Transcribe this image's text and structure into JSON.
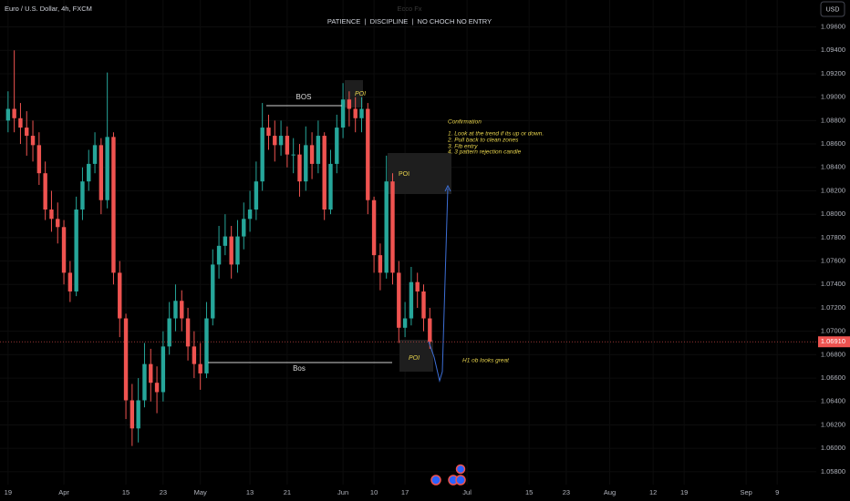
{
  "chart_data": {
    "type": "candlestick",
    "title": "Euro / U.S. Dollar, 4h, FXCM",
    "subtitle": "PATIENCE  |  DISCIPLINE  |  NO CHOCH NO ENTRY",
    "watermark": "Ecco Fx",
    "currency": "USD",
    "up_color": "#26a69a",
    "down_color": "#ef5350",
    "x": [
      0,
      1,
      2,
      3,
      4,
      5,
      6,
      7,
      8,
      9,
      10,
      11,
      12,
      13,
      14,
      15,
      16,
      17,
      18,
      19,
      20,
      21,
      22,
      23,
      24,
      25,
      26,
      27,
      28,
      29,
      30,
      31,
      32,
      33,
      34,
      35,
      36,
      37,
      38,
      39,
      40,
      41,
      42,
      43,
      44,
      45,
      46,
      47,
      48,
      49,
      50,
      51,
      52,
      53,
      54,
      55,
      56,
      57,
      58,
      59,
      60,
      61,
      62,
      63,
      64,
      65,
      66,
      67,
      68
    ],
    "open": [
      1.088,
      1.089,
      1.0882,
      1.0874,
      1.0867,
      1.0859,
      1.0835,
      1.0804,
      1.0796,
      1.0789,
      1.075,
      1.0734,
      1.0804,
      1.0828,
      1.0843,
      1.0859,
      1.0812,
      1.0866,
      1.075,
      1.0711,
      1.0641,
      1.0617,
      1.0641,
      1.0672,
      1.0656,
      1.0648,
      1.0687,
      1.0711,
      1.0726,
      1.0711,
      1.0687,
      1.0672,
      1.0664,
      1.0711,
      1.0757,
      1.0773,
      1.0781,
      1.0757,
      1.0781,
      1.0796,
      1.0804,
      1.0828,
      1.0874,
      1.0867,
      1.0859,
      1.0867,
      1.0851,
      1.0851,
      1.0828,
      1.0859,
      1.0843,
      1.0867,
      1.0804,
      1.0843,
      1.0874,
      1.0898,
      1.089,
      1.0882,
      1.089,
      1.0812,
      1.0765,
      1.075,
      1.0828,
      1.075,
      1.0703,
      1.0711,
      1.0742,
      1.0734,
      1.0711
    ],
    "high": [
      1.0905,
      1.094,
      1.0895,
      1.0888,
      1.088,
      1.087,
      1.0845,
      1.082,
      1.081,
      1.0795,
      1.076,
      1.0815,
      1.084,
      1.0855,
      1.087,
      1.0865,
      1.0921,
      1.087,
      1.076,
      1.0715,
      1.0655,
      1.066,
      1.069,
      1.0685,
      1.067,
      1.07,
      1.0725,
      1.074,
      1.0735,
      1.072,
      1.07,
      1.069,
      1.0725,
      1.077,
      1.079,
      1.08,
      1.079,
      1.0795,
      1.081,
      1.082,
      1.0845,
      1.0895,
      1.0885,
      1.088,
      1.088,
      1.0875,
      1.0865,
      1.086,
      1.0875,
      1.087,
      1.088,
      1.087,
      1.0855,
      1.0885,
      1.0912,
      1.0905,
      1.09,
      1.09,
      1.0895,
      1.0815,
      1.0775,
      1.085,
      1.0835,
      1.076,
      1.0725,
      1.0755,
      1.075,
      1.074,
      1.072
    ],
    "low": [
      1.087,
      1.087,
      1.086,
      1.085,
      1.0845,
      1.0825,
      1.0795,
      1.0785,
      1.0775,
      1.074,
      1.0725,
      1.073,
      1.0795,
      1.082,
      1.0835,
      1.08,
      1.0805,
      1.074,
      1.0695,
      1.0625,
      1.0602,
      1.0605,
      1.0635,
      1.064,
      1.063,
      1.064,
      1.068,
      1.07,
      1.07,
      1.0675,
      1.066,
      1.065,
      1.066,
      1.0705,
      1.0745,
      1.0765,
      1.0745,
      1.075,
      1.077,
      1.0785,
      1.0795,
      1.082,
      1.0855,
      1.0845,
      1.085,
      1.084,
      1.0835,
      1.0815,
      1.082,
      1.083,
      1.0835,
      1.0795,
      1.08,
      1.0835,
      1.0865,
      1.0875,
      1.087,
      1.087,
      1.08,
      1.075,
      1.0735,
      1.0745,
      1.074,
      1.069,
      1.0695,
      1.0705,
      1.072,
      1.07,
      1.0685
    ],
    "close": [
      1.089,
      1.0882,
      1.0874,
      1.0867,
      1.0859,
      1.0835,
      1.0804,
      1.0796,
      1.0789,
      1.075,
      1.0734,
      1.0804,
      1.0828,
      1.0843,
      1.0859,
      1.0812,
      1.0866,
      1.075,
      1.0711,
      1.0641,
      1.0617,
      1.0641,
      1.0672,
      1.0656,
      1.0648,
      1.0687,
      1.0711,
      1.0726,
      1.0711,
      1.0687,
      1.0672,
      1.0664,
      1.0711,
      1.0757,
      1.0773,
      1.0781,
      1.0757,
      1.0781,
      1.0796,
      1.0804,
      1.0828,
      1.0874,
      1.0867,
      1.0859,
      1.0867,
      1.0851,
      1.0851,
      1.0828,
      1.0859,
      1.0843,
      1.0867,
      1.0804,
      1.0843,
      1.0874,
      1.0898,
      1.089,
      1.0882,
      1.089,
      1.0812,
      1.0765,
      1.075,
      1.0828,
      1.075,
      1.0703,
      1.0711,
      1.0742,
      1.0734,
      1.0711,
      1.0691
    ],
    "xlim": [
      -1.3,
      130.3
    ],
    "xticks": [
      {
        "value": 0,
        "label": "19"
      },
      {
        "value": 9,
        "label": "Apr"
      },
      {
        "value": 19,
        "label": "15"
      },
      {
        "value": 25,
        "label": "23"
      },
      {
        "value": 31,
        "label": "May"
      },
      {
        "value": 39,
        "label": "13"
      },
      {
        "value": 45,
        "label": "21"
      },
      {
        "value": 54,
        "label": "Jun"
      },
      {
        "value": 59,
        "label": "10"
      },
      {
        "value": 64,
        "label": "17"
      },
      {
        "value": 74,
        "label": "Jul"
      },
      {
        "value": 84,
        "label": "15"
      },
      {
        "value": 90,
        "label": "23"
      },
      {
        "value": 97,
        "label": "Aug"
      },
      {
        "value": 104,
        "label": "12"
      },
      {
        "value": 109,
        "label": "19"
      },
      {
        "value": 119,
        "label": "Sep"
      },
      {
        "value": 124,
        "label": "9"
      }
    ],
    "ylim": [
      1.0569,
      1.0983
    ],
    "yticks": [
      {
        "value": 1.058,
        "label": "1.05800"
      },
      {
        "value": 1.06,
        "label": "1.06000"
      },
      {
        "value": 1.062,
        "label": "1.06200"
      },
      {
        "value": 1.064,
        "label": "1.06400"
      },
      {
        "value": 1.066,
        "label": "1.06600"
      },
      {
        "value": 1.068,
        "label": "1.06800"
      },
      {
        "value": 1.07,
        "label": "1.07000"
      },
      {
        "value": 1.072,
        "label": "1.07200"
      },
      {
        "value": 1.074,
        "label": "1.07400"
      },
      {
        "value": 1.076,
        "label": "1.07600"
      },
      {
        "value": 1.078,
        "label": "1.07800"
      },
      {
        "value": 1.08,
        "label": "1.08000"
      },
      {
        "value": 1.082,
        "label": "1.08200"
      },
      {
        "value": 1.084,
        "label": "1.08400"
      },
      {
        "value": 1.086,
        "label": "1.08600"
      },
      {
        "value": 1.088,
        "label": "1.08800"
      },
      {
        "value": 1.09,
        "label": "1.09000"
      },
      {
        "value": 1.092,
        "label": "1.09200"
      },
      {
        "value": 1.094,
        "label": "1.09400"
      },
      {
        "value": 1.096,
        "label": "1.09600"
      }
    ],
    "last_price": {
      "value": 1.0691,
      "label": "1.06910"
    },
    "annotations": {
      "bos_upper": "BOS",
      "bos_lower": "Bos",
      "poi": [
        "POI",
        "POI",
        "POI"
      ],
      "confirmation_title": "Confirmation",
      "confirmation_steps": [
        "1. Look at the trend if its up or down.",
        "2. Pull back to clean zones",
        "3. Fib entry",
        "4. 3 pattern rejection candle"
      ],
      "h1_note": "H1 ob looks great"
    }
  }
}
